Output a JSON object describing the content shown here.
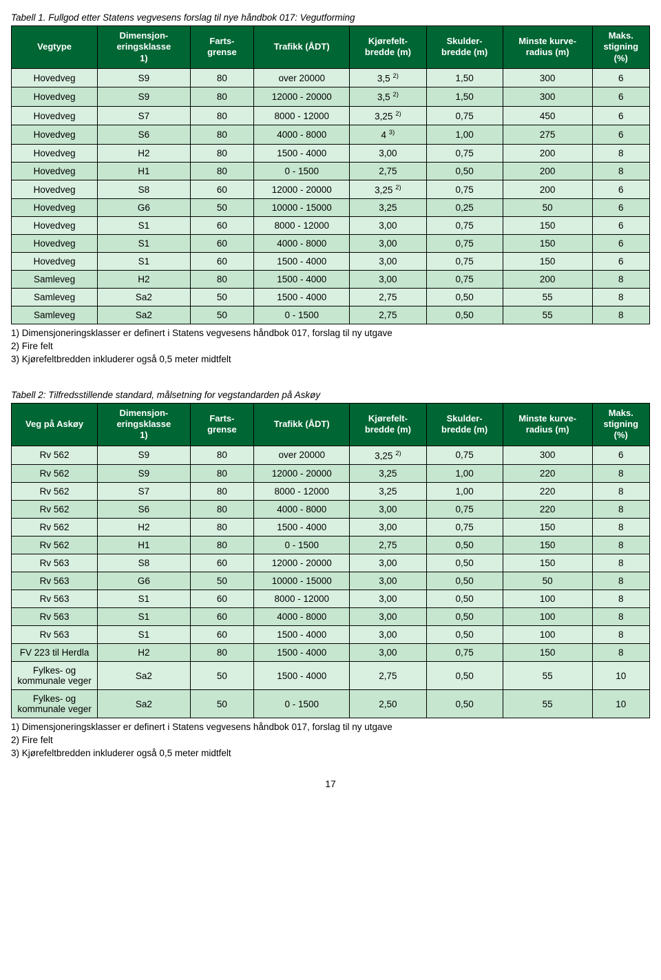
{
  "table1": {
    "caption": "Tabell 1. Fullgod etter Statens vegvesens forslag til nye håndbok 017: Vegutforming",
    "headers": [
      "Vegtype",
      "Dimensjon-eringsklasse 1)",
      "Farts-grense",
      "Trafikk (ÅDT)",
      "Kjørefelt-bredde (m)",
      "Skulder-bredde (m)",
      "Minste kurve-radius (m)",
      "Maks. stigning (%)"
    ],
    "rows": [
      [
        "Hovedveg",
        "S9",
        "80",
        "over 20000",
        "3,5 2)",
        "1,50",
        "300",
        "6"
      ],
      [
        "Hovedveg",
        "S9",
        "80",
        "12000 - 20000",
        "3,5 2)",
        "1,50",
        "300",
        "6"
      ],
      [
        "Hovedveg",
        "S7",
        "80",
        "8000 - 12000",
        "3,25 2)",
        "0,75",
        "450",
        "6"
      ],
      [
        "Hovedveg",
        "S6",
        "80",
        "4000 - 8000",
        "4 3)",
        "1,00",
        "275",
        "6"
      ],
      [
        "Hovedveg",
        "H2",
        "80",
        "1500 - 4000",
        "3,00",
        "0,75",
        "200",
        "8"
      ],
      [
        "Hovedveg",
        "H1",
        "80",
        "0 - 1500",
        "2,75",
        "0,50",
        "200",
        "8"
      ],
      [
        "Hovedveg",
        "S8",
        "60",
        "12000 - 20000",
        "3,25 2)",
        "0,75",
        "200",
        "6"
      ],
      [
        "Hovedveg",
        "G6",
        "50",
        "10000 - 15000",
        "3,25",
        "0,25",
        "50",
        "6"
      ],
      [
        "Hovedveg",
        "S1",
        "60",
        "8000 - 12000",
        "3,00",
        "0,75",
        "150",
        "6"
      ],
      [
        "Hovedveg",
        "S1",
        "60",
        "4000 - 8000",
        "3,00",
        "0,75",
        "150",
        "6"
      ],
      [
        "Hovedveg",
        "S1",
        "60",
        "1500 - 4000",
        "3,00",
        "0,75",
        "150",
        "6"
      ],
      [
        "Samleveg",
        "H2",
        "80",
        "1500 - 4000",
        "3,00",
        "0,75",
        "200",
        "8"
      ],
      [
        "Samleveg",
        "Sa2",
        "50",
        "1500 - 4000",
        "2,75",
        "0,50",
        "55",
        "8"
      ],
      [
        "Samleveg",
        "Sa2",
        "50",
        "0 - 1500",
        "2,75",
        "0,50",
        "55",
        "8"
      ]
    ],
    "footnotes": [
      "1) Dimensjoneringsklasser er definert i Statens vegvesens håndbok 017, forslag til ny utgave",
      "2) Fire felt",
      "3) Kjørefeltbredden inkluderer også 0,5 meter midtfelt"
    ]
  },
  "table2": {
    "caption": "Tabell 2: Tilfredsstillende standard, målsetning for vegstandarden på Askøy",
    "headers": [
      "Veg på Askøy",
      "Dimensjon-eringsklasse 1)",
      "Farts-grense",
      "Trafikk (ÅDT)",
      "Kjørefelt-bredde (m)",
      "Skulder-bredde (m)",
      "Minste kurve-radius (m)",
      "Maks. stigning (%)"
    ],
    "rows": [
      [
        "Rv 562",
        "S9",
        "80",
        "over 20000",
        "3,25 2)",
        "0,75",
        "300",
        "6"
      ],
      [
        "Rv 562",
        "S9",
        "80",
        "12000 - 20000",
        "3,25",
        "1,00",
        "220",
        "8"
      ],
      [
        "Rv 562",
        "S7",
        "80",
        "8000 - 12000",
        "3,25",
        "1,00",
        "220",
        "8"
      ],
      [
        "Rv 562",
        "S6",
        "80",
        "4000 - 8000",
        "3,00",
        "0,75",
        "220",
        "8"
      ],
      [
        "Rv 562",
        "H2",
        "80",
        "1500 - 4000",
        "3,00",
        "0,75",
        "150",
        "8"
      ],
      [
        "Rv 562",
        "H1",
        "80",
        "0 - 1500",
        "2,75",
        "0,50",
        "150",
        "8"
      ],
      [
        "Rv 563",
        "S8",
        "60",
        "12000 - 20000",
        "3,00",
        "0,50",
        "150",
        "8"
      ],
      [
        "Rv 563",
        "G6",
        "50",
        "10000 - 15000",
        "3,00",
        "0,50",
        "50",
        "8"
      ],
      [
        "Rv 563",
        "S1",
        "60",
        "8000 - 12000",
        "3,00",
        "0,50",
        "100",
        "8"
      ],
      [
        "Rv 563",
        "S1",
        "60",
        "4000 - 8000",
        "3,00",
        "0,50",
        "100",
        "8"
      ],
      [
        "Rv 563",
        "S1",
        "60",
        "1500 - 4000",
        "3,00",
        "0,50",
        "100",
        "8"
      ],
      [
        "FV 223 til Herdla",
        "H2",
        "80",
        "1500 - 4000",
        "3,00",
        "0,75",
        "150",
        "8"
      ],
      [
        "Fylkes- og kommunale veger",
        "Sa2",
        "50",
        "1500 - 4000",
        "2,75",
        "0,50",
        "55",
        "10"
      ],
      [
        "Fylkes- og kommunale veger",
        "Sa2",
        "50",
        "0 - 1500",
        "2,50",
        "0,50",
        "55",
        "10"
      ]
    ],
    "footnotes": [
      "1) Dimensjoneringsklasser er definert i Statens vegvesens håndbok 017, forslag til ny utgave",
      "2) Fire felt",
      "3) Kjørefeltbredden inkluderer også 0,5 meter midtfelt"
    ]
  },
  "page_number": "17",
  "style": {
    "header_bg": "#006633",
    "header_fg": "#ffffff",
    "row_bg_a": "#d9f0e0",
    "row_bg_b": "#c6e6cf"
  }
}
